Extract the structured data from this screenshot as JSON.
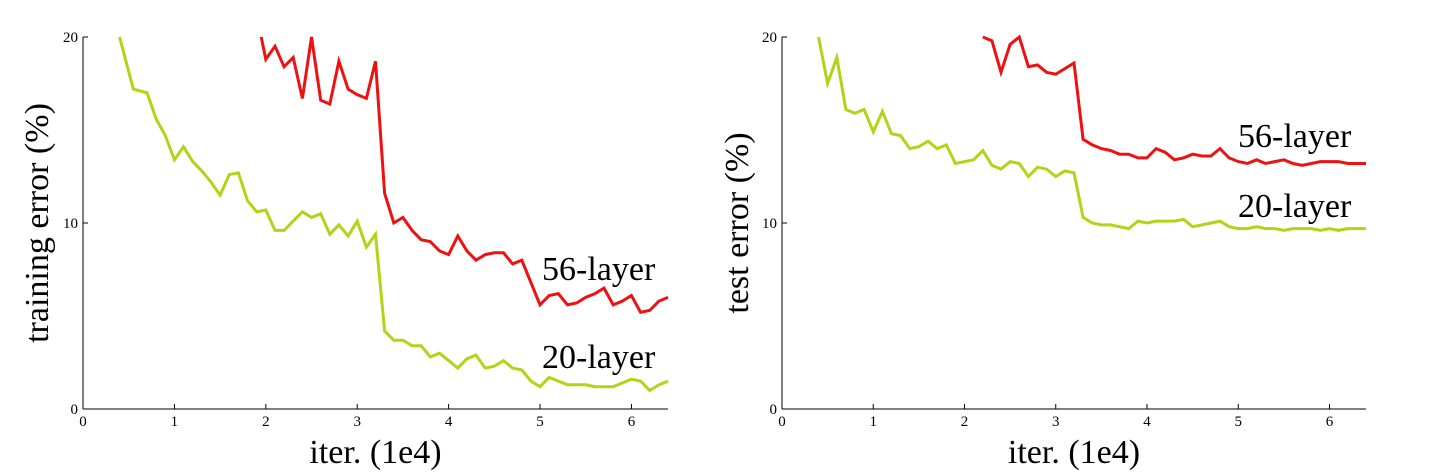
{
  "colors": {
    "red": "#ee1111",
    "green": "#b5d316",
    "axis": "#000000"
  },
  "chart_data": [
    {
      "type": "line",
      "title": "",
      "xlabel": "iter. (1e4)",
      "ylabel": "training error (%)",
      "xlim": [
        0,
        6.4
      ],
      "ylim": [
        0,
        20
      ],
      "xticks": [
        0,
        1,
        2,
        3,
        4,
        5,
        6
      ],
      "yticks": [
        0,
        10,
        20
      ],
      "grid": false,
      "series": [
        {
          "name": "56-layer",
          "color": "red",
          "x": [
            1.95,
            2.0,
            2.1,
            2.2,
            2.3,
            2.4,
            2.5,
            2.6,
            2.7,
            2.8,
            2.9,
            3.0,
            3.1,
            3.2,
            3.3,
            3.4,
            3.5,
            3.6,
            3.7,
            3.8,
            3.9,
            4.0,
            4.1,
            4.2,
            4.3,
            4.4,
            4.5,
            4.6,
            4.7,
            4.8,
            4.9,
            5.0,
            5.1,
            5.2,
            5.3,
            5.4,
            5.5,
            5.6,
            5.7,
            5.8,
            5.9,
            6.0,
            6.1,
            6.2,
            6.3,
            6.4
          ],
          "y": [
            20.0,
            18.8,
            19.5,
            18.4,
            18.9,
            16.7,
            20.0,
            16.6,
            16.4,
            18.7,
            17.2,
            16.9,
            16.7,
            18.7,
            11.6,
            10.0,
            10.3,
            9.6,
            9.1,
            9.0,
            8.5,
            8.3,
            9.3,
            8.5,
            8.0,
            8.3,
            8.4,
            8.4,
            7.8,
            8.0,
            6.8,
            5.6,
            6.1,
            6.2,
            5.6,
            5.7,
            6.0,
            6.2,
            6.5,
            5.6,
            5.8,
            6.1,
            5.2,
            5.3,
            5.8,
            6.0
          ]
        },
        {
          "name": "20-layer",
          "color": "green",
          "x": [
            0.4,
            0.55,
            0.7,
            0.8,
            0.9,
            1.0,
            1.1,
            1.2,
            1.3,
            1.4,
            1.5,
            1.6,
            1.7,
            1.8,
            1.9,
            2.0,
            2.1,
            2.2,
            2.3,
            2.4,
            2.5,
            2.6,
            2.7,
            2.8,
            2.9,
            3.0,
            3.1,
            3.2,
            3.3,
            3.4,
            3.5,
            3.6,
            3.7,
            3.8,
            3.9,
            4.0,
            4.1,
            4.2,
            4.3,
            4.4,
            4.5,
            4.6,
            4.7,
            4.8,
            4.9,
            5.0,
            5.1,
            5.2,
            5.3,
            5.4,
            5.5,
            5.6,
            5.7,
            5.8,
            5.9,
            6.0,
            6.1,
            6.2,
            6.3,
            6.4
          ],
          "y": [
            20.0,
            17.2,
            17.0,
            15.6,
            14.7,
            13.4,
            14.1,
            13.3,
            12.8,
            12.2,
            11.5,
            12.6,
            12.7,
            11.2,
            10.6,
            10.7,
            9.6,
            9.6,
            10.1,
            10.6,
            10.3,
            10.5,
            9.4,
            9.9,
            9.3,
            10.1,
            8.7,
            9.4,
            4.2,
            3.7,
            3.7,
            3.4,
            3.4,
            2.8,
            3.0,
            2.6,
            2.2,
            2.7,
            2.9,
            2.2,
            2.3,
            2.6,
            2.2,
            2.1,
            1.5,
            1.2,
            1.7,
            1.5,
            1.3,
            1.3,
            1.3,
            1.2,
            1.2,
            1.2,
            1.4,
            1.6,
            1.5,
            1.0,
            1.3,
            1.5
          ]
        }
      ],
      "annotations": [
        "56-layer",
        "20-layer"
      ]
    },
    {
      "type": "line",
      "title": "",
      "xlabel": "iter. (1e4)",
      "ylabel": "test error (%)",
      "xlim": [
        0,
        6.4
      ],
      "ylim": [
        0,
        20
      ],
      "xticks": [
        0,
        1,
        2,
        3,
        4,
        5,
        6
      ],
      "yticks": [
        0,
        10,
        20
      ],
      "grid": false,
      "series": [
        {
          "name": "56-layer",
          "color": "red",
          "x": [
            2.2,
            2.3,
            2.4,
            2.5,
            2.6,
            2.7,
            2.8,
            2.9,
            3.0,
            3.1,
            3.2,
            3.3,
            3.4,
            3.5,
            3.6,
            3.7,
            3.8,
            3.9,
            4.0,
            4.1,
            4.2,
            4.3,
            4.4,
            4.5,
            4.6,
            4.7,
            4.8,
            4.9,
            5.0,
            5.1,
            5.2,
            5.3,
            5.4,
            5.5,
            5.6,
            5.7,
            5.8,
            5.9,
            6.0,
            6.1,
            6.2,
            6.3,
            6.4
          ],
          "y": [
            20.0,
            19.8,
            18.1,
            19.6,
            20.0,
            18.4,
            18.5,
            18.1,
            18.0,
            18.3,
            18.6,
            14.5,
            14.2,
            14.0,
            13.9,
            13.7,
            13.7,
            13.5,
            13.5,
            14.0,
            13.8,
            13.4,
            13.5,
            13.7,
            13.6,
            13.6,
            14.0,
            13.5,
            13.3,
            13.2,
            13.4,
            13.2,
            13.3,
            13.4,
            13.2,
            13.1,
            13.2,
            13.3,
            13.3,
            13.3,
            13.2,
            13.2,
            13.2
          ]
        },
        {
          "name": "20-layer",
          "color": "green",
          "x": [
            0.4,
            0.5,
            0.6,
            0.7,
            0.8,
            0.9,
            1.0,
            1.1,
            1.2,
            1.3,
            1.4,
            1.5,
            1.6,
            1.7,
            1.8,
            1.9,
            2.0,
            2.1,
            2.2,
            2.3,
            2.4,
            2.5,
            2.6,
            2.7,
            2.8,
            2.9,
            3.0,
            3.1,
            3.2,
            3.3,
            3.4,
            3.5,
            3.6,
            3.7,
            3.8,
            3.9,
            4.0,
            4.1,
            4.2,
            4.3,
            4.4,
            4.5,
            4.6,
            4.7,
            4.8,
            4.9,
            5.0,
            5.1,
            5.2,
            5.3,
            5.4,
            5.5,
            5.6,
            5.7,
            5.8,
            5.9,
            6.0,
            6.1,
            6.2,
            6.3,
            6.4
          ],
          "y": [
            20.0,
            17.5,
            18.9,
            16.1,
            15.9,
            16.1,
            14.9,
            16.0,
            14.8,
            14.7,
            14.0,
            14.1,
            14.4,
            14.0,
            14.2,
            13.2,
            13.3,
            13.4,
            13.9,
            13.1,
            12.9,
            13.3,
            13.2,
            12.5,
            13.0,
            12.9,
            12.5,
            12.8,
            12.7,
            10.3,
            10.0,
            9.9,
            9.9,
            9.8,
            9.7,
            10.1,
            10.0,
            10.1,
            10.1,
            10.1,
            10.2,
            9.8,
            9.9,
            10.0,
            10.1,
            9.8,
            9.7,
            9.7,
            9.8,
            9.7,
            9.7,
            9.6,
            9.7,
            9.7,
            9.7,
            9.6,
            9.7,
            9.6,
            9.7,
            9.7,
            9.7
          ]
        }
      ],
      "annotations": [
        "56-layer",
        "20-layer"
      ]
    }
  ]
}
